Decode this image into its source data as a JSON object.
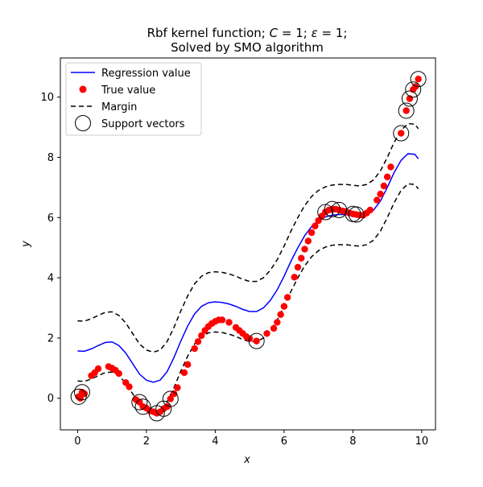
{
  "chart_data": {
    "type": "scatter",
    "title": {
      "line1_prefix": "Rbf kernel function; ",
      "line1_c_symbol": "C",
      "line1_c_value": " = 1; ",
      "line1_eps_symbol": "ε",
      "line1_eps_value": " = 1;",
      "line2": "Solved by SMO algorithm"
    },
    "xlabel": "x",
    "ylabel": "y",
    "xlim": [
      -0.5,
      10.4
    ],
    "ylim": [
      -1.05,
      11.3
    ],
    "xticks": [
      0,
      2,
      4,
      6,
      8,
      10
    ],
    "yticks": [
      0,
      2,
      4,
      6,
      8,
      10
    ],
    "xtick_labels": [
      "0",
      "2",
      "4",
      "6",
      "8",
      "10"
    ],
    "ytick_labels": [
      "0",
      "2",
      "4",
      "6",
      "8",
      "10"
    ],
    "legend": {
      "placement": "upper-left",
      "entries": [
        {
          "label": "Regression value",
          "marker": "line"
        },
        {
          "label": "True value",
          "marker": "dot"
        },
        {
          "label": "Margin",
          "marker": "dashed"
        },
        {
          "label": "Support vectors",
          "marker": "circle"
        }
      ]
    },
    "colors": {
      "regression": "#0000ff",
      "true_value": "#ff0000",
      "margin": "#000000",
      "support_vectors": "#000000"
    },
    "series": [
      {
        "name": "Regression value",
        "style": "line",
        "x": [
          0,
          0.2,
          0.4,
          0.6,
          0.8,
          1.0,
          1.2,
          1.4,
          1.6,
          1.8,
          2.0,
          2.2,
          2.4,
          2.6,
          2.8,
          3.0,
          3.2,
          3.4,
          3.6,
          3.8,
          4.0,
          4.2,
          4.4,
          4.6,
          4.8,
          5.0,
          5.2,
          5.4,
          5.6,
          5.8,
          6.0,
          6.2,
          6.4,
          6.6,
          6.8,
          7.0,
          7.2,
          7.4,
          7.6,
          7.8,
          8.0,
          8.2,
          8.4,
          8.6,
          8.8,
          9.0,
          9.2,
          9.4,
          9.6,
          9.8,
          9.9
        ],
        "y": [
          1.57,
          1.56,
          1.64,
          1.75,
          1.85,
          1.87,
          1.75,
          1.5,
          1.15,
          0.8,
          0.6,
          0.53,
          0.6,
          0.88,
          1.35,
          1.9,
          2.4,
          2.8,
          3.05,
          3.17,
          3.2,
          3.18,
          3.13,
          3.05,
          2.95,
          2.88,
          2.88,
          3.0,
          3.25,
          3.6,
          4.05,
          4.55,
          5.0,
          5.4,
          5.7,
          5.9,
          6.02,
          6.08,
          6.1,
          6.1,
          6.07,
          6.05,
          6.1,
          6.25,
          6.55,
          7.0,
          7.5,
          7.9,
          8.12,
          8.1,
          7.95
        ]
      },
      {
        "name": "Margin",
        "style": "dashed",
        "offsets": [
          1,
          -1
        ]
      },
      {
        "name": "True value",
        "style": "dot",
        "x": [
          0.03,
          0.08,
          0.13,
          0.2,
          0.4,
          0.5,
          0.6,
          0.9,
          1.0,
          1.1,
          1.2,
          1.4,
          1.5,
          1.7,
          1.8,
          1.9,
          2.0,
          2.1,
          2.2,
          2.3,
          2.4,
          2.5,
          2.6,
          2.7,
          2.8,
          2.9,
          3.1,
          3.2,
          3.4,
          3.5,
          3.6,
          3.7,
          3.8,
          3.9,
          4.0,
          4.1,
          4.2,
          4.4,
          4.6,
          4.7,
          4.8,
          4.9,
          5.0,
          5.2,
          5.5,
          5.7,
          5.8,
          5.9,
          6.0,
          6.1,
          6.3,
          6.4,
          6.5,
          6.6,
          6.7,
          6.8,
          6.9,
          7.0,
          7.1,
          7.2,
          7.3,
          7.4,
          7.5,
          7.6,
          7.7,
          7.8,
          7.9,
          8.0,
          8.1,
          8.2,
          8.3,
          8.4,
          8.5,
          8.7,
          8.8,
          8.9,
          9.0,
          9.1,
          9.4,
          9.55,
          9.65,
          9.75,
          9.82,
          9.9
        ],
        "y": [
          0.05,
          0.0,
          0.2,
          0.15,
          0.75,
          0.85,
          0.98,
          1.05,
          1.0,
          0.93,
          0.82,
          0.52,
          0.38,
          -0.05,
          -0.13,
          -0.28,
          -0.33,
          -0.42,
          -0.45,
          -0.5,
          -0.45,
          -0.35,
          -0.28,
          -0.02,
          0.15,
          0.35,
          0.85,
          1.12,
          1.65,
          1.88,
          2.08,
          2.25,
          2.38,
          2.48,
          2.55,
          2.6,
          2.6,
          2.52,
          2.35,
          2.25,
          2.15,
          2.05,
          1.98,
          1.9,
          2.15,
          2.32,
          2.52,
          2.78,
          3.05,
          3.35,
          4.02,
          4.35,
          4.65,
          4.95,
          5.22,
          5.5,
          5.72,
          5.9,
          6.05,
          6.18,
          6.25,
          6.28,
          6.28,
          6.25,
          6.22,
          6.2,
          6.15,
          6.12,
          6.1,
          6.08,
          6.08,
          6.15,
          6.25,
          6.58,
          6.78,
          7.05,
          7.35,
          7.68,
          8.8,
          9.55,
          9.95,
          10.25,
          10.35,
          10.6
        ]
      },
      {
        "name": "Support vectors",
        "style": "circle",
        "x": [
          0.03,
          0.13,
          1.8,
          1.9,
          2.3,
          2.5,
          2.7,
          5.2,
          7.2,
          7.4,
          7.6,
          8.0,
          8.1,
          9.4,
          9.55,
          9.65,
          9.75,
          9.9
        ],
        "y": [
          0.05,
          0.2,
          -0.13,
          -0.28,
          -0.5,
          -0.35,
          -0.02,
          1.9,
          6.18,
          6.28,
          6.25,
          6.12,
          6.1,
          8.8,
          9.55,
          9.95,
          10.25,
          10.6
        ]
      }
    ]
  }
}
